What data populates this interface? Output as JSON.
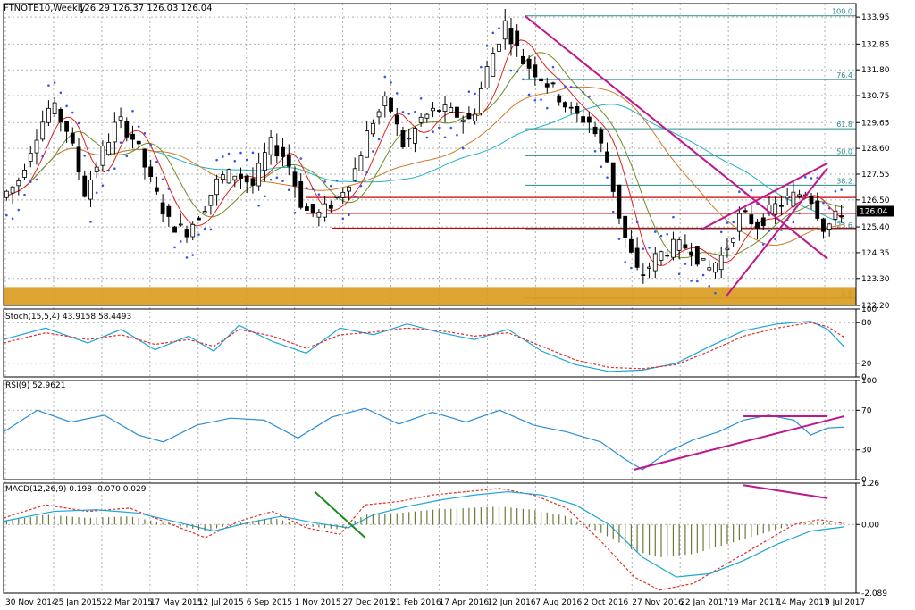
{
  "header": {
    "symbol": "FTNOTE10,Weekly",
    "ohlc": "126.29 126.37 126.03 126.04"
  },
  "colors": {
    "bull_candle": "#ffffff",
    "bear_candle": "#000000",
    "grid": "#b0b0b0",
    "fib_line": "#2a8a8a",
    "trend_line": "#c0168c",
    "support_band": "#d99a1c",
    "resistance_line": "#cc0000",
    "stoch_main": "#1aa7d8",
    "stoch_signal": "#e0302a",
    "rsi": "#2c8fd6",
    "macd_line": "#e0302a",
    "macd_signal": "#1aa7d8",
    "macd_hist": "#6b7a3a",
    "parabolic_sar": "#3355ee",
    "ma_fast": "#e02020",
    "ma_mid": "#6b8e23",
    "ma_slow": "#d27a2a",
    "ma_long": "#20b2c8"
  },
  "chart_data": [
    {
      "type": "candlestick",
      "title": "FTNOTE10,Weekly",
      "period": "Weekly",
      "last_price": "126.04",
      "ylim": [
        122.2,
        134.5
      ],
      "y_ticks": [
        "133.95",
        "132.85",
        "131.80",
        "130.75",
        "129.65",
        "128.60",
        "127.55",
        "126.50",
        "125.40",
        "124.35",
        "123.30",
        "122.20"
      ],
      "x_tick_labels": [
        "30 Nov 2014",
        "25 Jan 2015",
        "22 Mar 2015",
        "17 May 2015",
        "12 Jul 2015",
        "6 Sep 2015",
        "1 Nov 2015",
        "27 Dec 2015",
        "21 Feb 2016",
        "17 Apr 2016",
        "12 Jun 2016",
        "7 Aug 2016",
        "2 Oct 2016",
        "27 Nov 2016",
        "22 Jan 2017",
        "19 Mar 2017",
        "14 May 2017",
        "9 Jul 2017"
      ],
      "close_path": [
        [
          0,
          126.6
        ],
        [
          2,
          127.2
        ],
        [
          4,
          129.0
        ],
        [
          6,
          130.4
        ],
        [
          8,
          129.3
        ],
        [
          10,
          126.8
        ],
        [
          12,
          128.4
        ],
        [
          14,
          129.8
        ],
        [
          16,
          128.9
        ],
        [
          18,
          127.1
        ],
        [
          20,
          125.6
        ],
        [
          22,
          125.2
        ],
        [
          24,
          126.1
        ],
        [
          26,
          127.4
        ],
        [
          28,
          127.6
        ],
        [
          30,
          127.1
        ],
        [
          32,
          128.8
        ],
        [
          34,
          128.2
        ],
        [
          36,
          126.1
        ],
        [
          38,
          125.9
        ],
        [
          40,
          126.6
        ],
        [
          42,
          127.6
        ],
        [
          44,
          129.6
        ],
        [
          46,
          130.6
        ],
        [
          48,
          128.6
        ],
        [
          50,
          129.8
        ],
        [
          52,
          130.2
        ],
        [
          54,
          130.0
        ],
        [
          56,
          129.7
        ],
        [
          58,
          132.0
        ],
        [
          60,
          133.7
        ],
        [
          62,
          132.2
        ],
        [
          64,
          131.6
        ],
        [
          66,
          130.9
        ],
        [
          68,
          130.0
        ],
        [
          70,
          129.7
        ],
        [
          72,
          128.3
        ],
        [
          74,
          125.2
        ],
        [
          76,
          123.3
        ],
        [
          78,
          124.2
        ],
        [
          80,
          124.6
        ],
        [
          82,
          124.6
        ],
        [
          84,
          123.6
        ],
        [
          86,
          124.3
        ],
        [
          88,
          125.9
        ],
        [
          90,
          125.5
        ],
        [
          92,
          126.2
        ],
        [
          94,
          126.6
        ],
        [
          96,
          126.9
        ],
        [
          98,
          125.3
        ],
        [
          100,
          126.04
        ]
      ],
      "fibonacci_levels": [
        {
          "label": "100.0",
          "value": 134.0
        },
        {
          "label": "76.4",
          "value": 131.4
        },
        {
          "label": "61.8",
          "value": 129.4
        },
        {
          "label": "50.0",
          "value": 128.3
        },
        {
          "label": "38.2",
          "value": 127.1
        },
        {
          "label": "23.6",
          "value": 125.3
        },
        {
          "label": "0.0",
          "value": 122.5
        }
      ],
      "support_zone": [
        122.2,
        122.95
      ],
      "horizontal_lines": [
        126.6,
        125.95,
        125.35
      ],
      "trend_lines": [
        {
          "from": [
            62,
            134.0
          ],
          "to": [
            98,
            124.1
          ]
        },
        {
          "from": [
            86,
            122.6
          ],
          "to": [
            98,
            127.8
          ]
        },
        {
          "from": [
            83,
            125.3
          ],
          "to": [
            98,
            128.0
          ]
        }
      ]
    },
    {
      "type": "line",
      "title": "Stoch(15,5,4) 43.9158 58.4493",
      "ylim": [
        0,
        100
      ],
      "y_ticks": [
        "100",
        "80",
        "20",
        "0"
      ],
      "series": [
        {
          "name": "main",
          "points": [
            [
              0,
              55
            ],
            [
              5,
              72
            ],
            [
              10,
              50
            ],
            [
              14,
              70
            ],
            [
              18,
              40
            ],
            [
              22,
              60
            ],
            [
              25,
              38
            ],
            [
              28,
              76
            ],
            [
              32,
              52
            ],
            [
              36,
              35
            ],
            [
              40,
              72
            ],
            [
              44,
              62
            ],
            [
              48,
              78
            ],
            [
              52,
              65
            ],
            [
              56,
              55
            ],
            [
              60,
              70
            ],
            [
              64,
              38
            ],
            [
              68,
              18
            ],
            [
              72,
              8
            ],
            [
              76,
              10
            ],
            [
              80,
              20
            ],
            [
              84,
              45
            ],
            [
              88,
              68
            ],
            [
              92,
              78
            ],
            [
              96,
              82
            ],
            [
              98,
              70
            ],
            [
              100,
              44
            ]
          ]
        },
        {
          "name": "signal",
          "points": [
            [
              0,
              50
            ],
            [
              5,
              65
            ],
            [
              10,
              55
            ],
            [
              14,
              62
            ],
            [
              18,
              48
            ],
            [
              22,
              55
            ],
            [
              25,
              45
            ],
            [
              28,
              70
            ],
            [
              32,
              60
            ],
            [
              36,
              42
            ],
            [
              40,
              62
            ],
            [
              44,
              66
            ],
            [
              48,
              72
            ],
            [
              52,
              68
            ],
            [
              56,
              60
            ],
            [
              60,
              65
            ],
            [
              64,
              45
            ],
            [
              68,
              25
            ],
            [
              72,
              14
            ],
            [
              76,
              12
            ],
            [
              80,
              18
            ],
            [
              84,
              38
            ],
            [
              88,
              60
            ],
            [
              92,
              72
            ],
            [
              96,
              80
            ],
            [
              98,
              74
            ],
            [
              100,
              58
            ]
          ]
        }
      ]
    },
    {
      "type": "line",
      "title": "RSI(9) 52.9621",
      "ylim": [
        0,
        100
      ],
      "y_ticks": [
        "100",
        "70",
        "30",
        "0"
      ],
      "series": [
        {
          "name": "RSI(9)",
          "points": [
            [
              0,
              48
            ],
            [
              4,
              70
            ],
            [
              8,
              58
            ],
            [
              12,
              65
            ],
            [
              16,
              45
            ],
            [
              19,
              38
            ],
            [
              23,
              55
            ],
            [
              27,
              62
            ],
            [
              31,
              60
            ],
            [
              35,
              42
            ],
            [
              39,
              63
            ],
            [
              43,
              72
            ],
            [
              47,
              56
            ],
            [
              51,
              68
            ],
            [
              55,
              58
            ],
            [
              59,
              70
            ],
            [
              63,
              55
            ],
            [
              67,
              48
            ],
            [
              71,
              38
            ],
            [
              74,
              20
            ],
            [
              76,
              10
            ],
            [
              79,
              28
            ],
            [
              82,
              40
            ],
            [
              85,
              48
            ],
            [
              88,
              60
            ],
            [
              91,
              65
            ],
            [
              94,
              60
            ],
            [
              96,
              45
            ],
            [
              98,
              52
            ],
            [
              100,
              53
            ]
          ]
        }
      ],
      "trend_lines": [
        {
          "from": [
            75,
            10
          ],
          "to": [
            100,
            64
          ]
        },
        {
          "from": [
            88,
            64
          ],
          "to": [
            98,
            64
          ]
        }
      ]
    },
    {
      "type": "bar",
      "title": "MACD(12,26,9) 0.198 -0.070 0.029",
      "ylim": [
        -2.089,
        1.26
      ],
      "y_ticks": [
        "1.26",
        "0.00",
        "-2.089"
      ],
      "series": [
        {
          "name": "MACD",
          "points": [
            [
              0,
              0.2
            ],
            [
              5,
              0.6
            ],
            [
              10,
              0.4
            ],
            [
              15,
              0.5
            ],
            [
              20,
              0.0
            ],
            [
              24,
              -0.4
            ],
            [
              28,
              0.1
            ],
            [
              32,
              0.4
            ],
            [
              36,
              -0.1
            ],
            [
              40,
              -0.3
            ],
            [
              43,
              0.6
            ],
            [
              47,
              0.7
            ],
            [
              51,
              0.9
            ],
            [
              55,
              1.0
            ],
            [
              59,
              1.1
            ],
            [
              63,
              0.9
            ],
            [
              67,
              0.5
            ],
            [
              71,
              -0.5
            ],
            [
              75,
              -1.6
            ],
            [
              78,
              -2.0
            ],
            [
              82,
              -1.8
            ],
            [
              86,
              -1.2
            ],
            [
              90,
              -0.6
            ],
            [
              94,
              0.0
            ],
            [
              97,
              0.15
            ],
            [
              100,
              0.03
            ]
          ]
        },
        {
          "name": "Signal",
          "points": [
            [
              0,
              0.1
            ],
            [
              6,
              0.4
            ],
            [
              11,
              0.45
            ],
            [
              16,
              0.35
            ],
            [
              21,
              0.05
            ],
            [
              25,
              -0.2
            ],
            [
              29,
              0.05
            ],
            [
              33,
              0.25
            ],
            [
              37,
              0.05
            ],
            [
              41,
              -0.1
            ],
            [
              44,
              0.3
            ],
            [
              48,
              0.55
            ],
            [
              52,
              0.75
            ],
            [
              56,
              0.9
            ],
            [
              60,
              1.0
            ],
            [
              64,
              0.9
            ],
            [
              68,
              0.6
            ],
            [
              72,
              0.0
            ],
            [
              76,
              -1.0
            ],
            [
              80,
              -1.6
            ],
            [
              84,
              -1.5
            ],
            [
              88,
              -1.1
            ],
            [
              92,
              -0.6
            ],
            [
              96,
              -0.2
            ],
            [
              100,
              -0.07
            ]
          ]
        }
      ],
      "trend_lines": [
        {
          "from": [
            37,
            1.0
          ],
          "to": [
            43,
            -0.4
          ]
        },
        {
          "from": [
            88,
            1.2
          ],
          "to": [
            98,
            0.8
          ]
        }
      ]
    }
  ]
}
